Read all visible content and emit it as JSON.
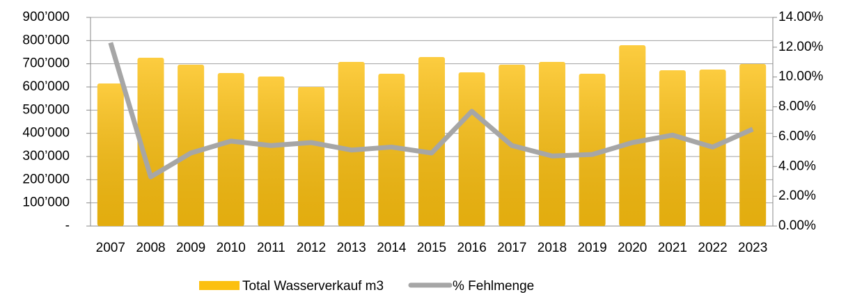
{
  "chart_data": {
    "type": "bar_line",
    "categories": [
      "2007",
      "2008",
      "2009",
      "2010",
      "2011",
      "2012",
      "2013",
      "2014",
      "2015",
      "2016",
      "2017",
      "2018",
      "2019",
      "2020",
      "2021",
      "2022",
      "2023"
    ],
    "series": [
      {
        "name": "Total Wasserverkauf m3",
        "type": "bar",
        "color": "#fcc010",
        "values": [
          615000,
          726000,
          696000,
          660000,
          645000,
          600000,
          708000,
          657000,
          729000,
          663000,
          696000,
          708000,
          657000,
          780000,
          672000,
          675000,
          699000
        ]
      },
      {
        "name": "% Fehlmenge",
        "type": "line",
        "axis": "y2",
        "color": "#a6a6a6",
        "values": [
          12.3,
          3.3,
          4.9,
          5.7,
          5.4,
          5.6,
          5.1,
          5.3,
          4.9,
          7.7,
          5.4,
          4.7,
          4.8,
          5.6,
          6.1,
          5.3,
          6.5
        ]
      }
    ],
    "ylim": [
      0,
      900000
    ],
    "yticks": [
      {
        "value": 0,
        "label": "-"
      },
      {
        "value": 100000,
        "label": "100’000"
      },
      {
        "value": 200000,
        "label": "200’000"
      },
      {
        "value": 300000,
        "label": "300’000"
      },
      {
        "value": 400000,
        "label": "400’000"
      },
      {
        "value": 500000,
        "label": "500’000"
      },
      {
        "value": 600000,
        "label": "600’000"
      },
      {
        "value": 700000,
        "label": "700’000"
      },
      {
        "value": 800000,
        "label": "800’000"
      },
      {
        "value": 900000,
        "label": "900’000"
      }
    ],
    "y2lim": [
      0,
      14
    ],
    "y2ticks": [
      {
        "value": 0,
        "label": "0.00%"
      },
      {
        "value": 2,
        "label": "2.00%"
      },
      {
        "value": 4,
        "label": "4.00%"
      },
      {
        "value": 6,
        "label": "6.00%"
      },
      {
        "value": 8,
        "label": "8.00%"
      },
      {
        "value": 10,
        "label": "10.00%"
      },
      {
        "value": 12,
        "label": "12.00%"
      },
      {
        "value": 14,
        "label": "14.00%"
      }
    ],
    "grid": true,
    "legend": "bottom"
  }
}
